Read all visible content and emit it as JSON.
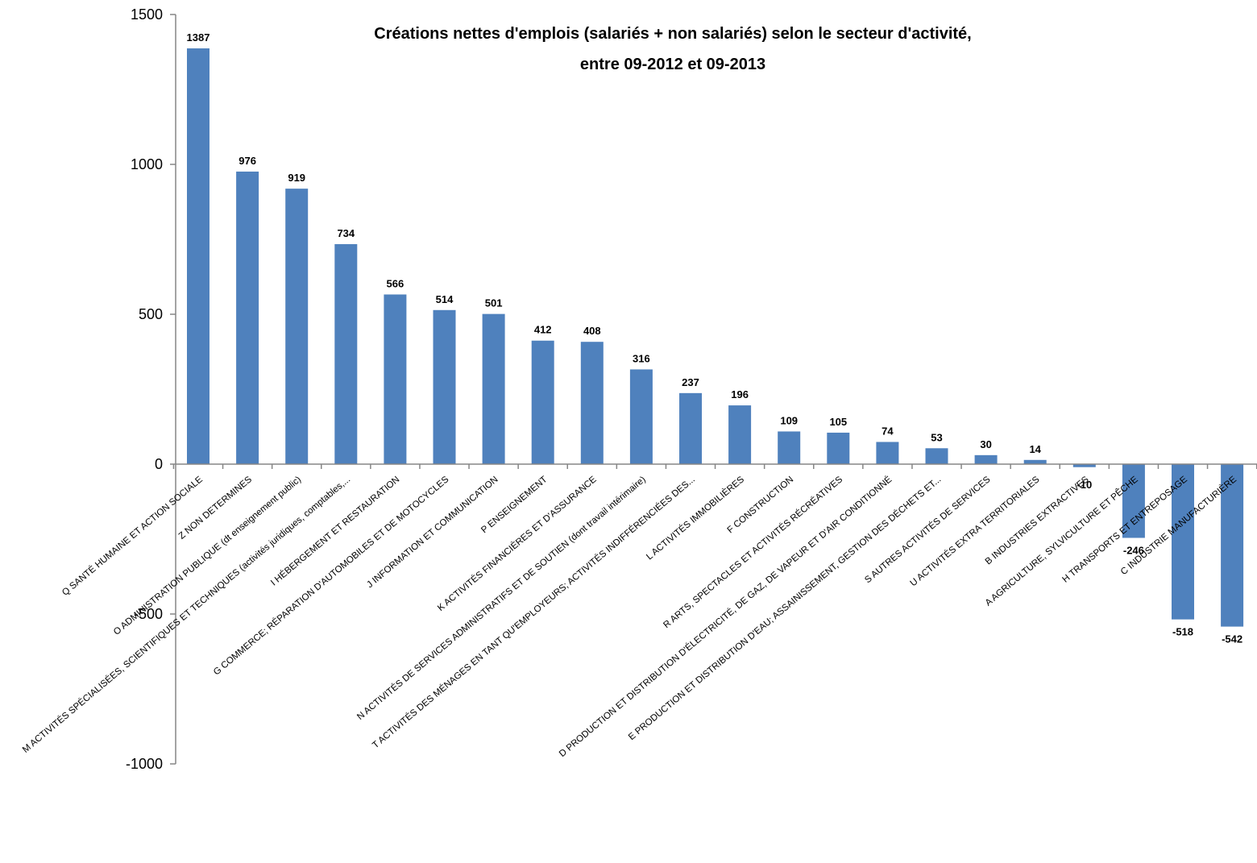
{
  "chart_data": {
    "type": "bar",
    "title": [
      "Créations nettes d'emplois (salariés + non salariés) selon le secteur d'activité,",
      "entre 09-2012 et 09-2013"
    ],
    "xlabel": "",
    "ylabel": "",
    "ylim": [
      -1000,
      1500
    ],
    "yticks": [
      1500,
      1000,
      500,
      0,
      -500,
      -1000
    ],
    "grid": false,
    "bar_color": "#4f81bd",
    "categories": [
      "Q SANTÉ HUMAINE ET ACTION SOCIALE",
      "Z  NON DETERMINES",
      "O ADMINISTRATION PUBLIQUE (dt enseignement public)",
      "M ACTIVITÉS SPÉCIALISÉES, SCIENTIFIQUES ET TECHNIQUES (activités juridiques, comptables,...",
      "I HÉBERGEMENT ET RESTAURATION",
      "G COMMERCE; RÉPARATION D'AUTOMOBILES ET DE MOTOCYCLES",
      "J INFORMATION ET COMMUNICATION",
      "P ENSEIGNEMENT",
      "K ACTIVITÉS FINANCIÈRES ET D'ASSURANCE",
      "N ACTIVITÉS DE SERVICES ADMINISTRATIFS ET DE SOUTIEN (dont travail intérimaire)",
      "T ACTIVITÉS DES MÉNAGES EN TANT QU'EMPLOYEURS; ACTIVITÉS INDIFFÉRENCIÉES DES...",
      "L ACTIVITÉS IMMOBILIÈRES",
      "F CONSTRUCTION",
      "R ARTS, SPECTACLES ET ACTIVITÉS RÉCRÉATIVES",
      "D PRODUCTION ET DISTRIBUTION D'ÉLECTRICITÉ, DE GAZ, DE VAPEUR ET D'AIR CONDITIONNÉ",
      "E PRODUCTION ET DISTRIBUTION D'EAU; ASSAINISSEMENT, GESTION DES DÉCHETS ET...",
      "S AUTRES ACTIVITÉS DE SERVICES",
      "U ACTIVITÉS EXTRA TERRITORIALES",
      "B INDUSTRIES EXTRACTIVES",
      "A AGRICULTURE, SYLVICULTURE ET PÊCHE",
      "H TRANSPORTS ET ENTREPOSAGE",
      "C INDUSTRIE MANUFACTURIÈRE"
    ],
    "values": [
      1387,
      976,
      919,
      734,
      566,
      514,
      501,
      412,
      408,
      316,
      237,
      196,
      109,
      105,
      74,
      53,
      30,
      14,
      -10,
      -246,
      -518,
      -542
    ]
  }
}
